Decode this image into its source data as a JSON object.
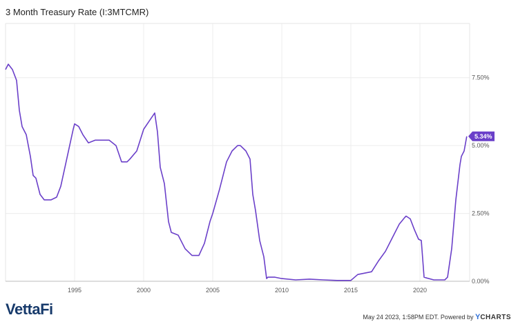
{
  "chart_data": {
    "type": "line",
    "title": "3 Month Treasury Rate (I:3MTCMR)",
    "series": [
      {
        "color": "#6a3fc9",
        "x": [
          1990.0,
          1990.2,
          1990.5,
          1990.8,
          1991.0,
          1991.2,
          1991.5,
          1991.8,
          1992.0,
          1992.2,
          1992.5,
          1992.8,
          1993.0,
          1993.3,
          1993.7,
          1994.0,
          1994.3,
          1994.6,
          1994.9,
          1995.0,
          1995.3,
          1995.6,
          1996.0,
          1996.5,
          1997.0,
          1997.5,
          1998.0,
          1998.4,
          1998.8,
          1999.0,
          1999.5,
          2000.0,
          2000.4,
          2000.8,
          2001.0,
          2001.2,
          2001.5,
          2001.8,
          2002.0,
          2002.5,
          2003.0,
          2003.5,
          2004.0,
          2004.4,
          2004.8,
          2005.0,
          2005.5,
          2006.0,
          2006.4,
          2006.8,
          2007.0,
          2007.4,
          2007.7,
          2007.9,
          2008.1,
          2008.4,
          2008.7,
          2008.9,
          2009.0,
          2009.5,
          2010.0,
          2011.0,
          2012.0,
          2013.0,
          2014.0,
          2015.0,
          2015.5,
          2016.0,
          2016.5,
          2017.0,
          2017.5,
          2018.0,
          2018.5,
          2018.9,
          2019.0,
          2019.3,
          2019.6,
          2019.9,
          2020.1,
          2020.3,
          2020.5,
          2021.0,
          2021.5,
          2021.8,
          2022.0,
          2022.3,
          2022.6,
          2022.9,
          2023.0,
          2023.2,
          2023.39
        ],
        "y": [
          7.8,
          8.0,
          7.8,
          7.4,
          6.3,
          5.7,
          5.4,
          4.6,
          3.9,
          3.8,
          3.2,
          3.0,
          3.0,
          3.0,
          3.1,
          3.5,
          4.2,
          4.9,
          5.6,
          5.8,
          5.7,
          5.4,
          5.1,
          5.2,
          5.2,
          5.2,
          5.0,
          4.4,
          4.4,
          4.5,
          4.8,
          5.6,
          5.9,
          6.2,
          5.5,
          4.2,
          3.6,
          2.2,
          1.8,
          1.7,
          1.2,
          0.95,
          0.95,
          1.4,
          2.2,
          2.5,
          3.4,
          4.4,
          4.8,
          5.0,
          5.0,
          4.8,
          4.5,
          3.2,
          2.6,
          1.5,
          0.9,
          0.1,
          0.15,
          0.15,
          0.1,
          0.05,
          0.08,
          0.05,
          0.03,
          0.03,
          0.25,
          0.3,
          0.35,
          0.75,
          1.1,
          1.6,
          2.1,
          2.35,
          2.4,
          2.3,
          1.9,
          1.55,
          1.5,
          0.15,
          0.12,
          0.05,
          0.05,
          0.05,
          0.15,
          1.2,
          3.0,
          4.3,
          4.6,
          4.8,
          5.34
        ]
      }
    ],
    "x_ticks": [
      {
        "v": 1995,
        "label": "1995"
      },
      {
        "v": 2000,
        "label": "2000"
      },
      {
        "v": 2005,
        "label": "2005"
      },
      {
        "v": 2010,
        "label": "2010"
      },
      {
        "v": 2015,
        "label": "2015"
      },
      {
        "v": 2020,
        "label": "2020"
      }
    ],
    "y_ticks": [
      {
        "v": 0,
        "label": "0.00%"
      },
      {
        "v": 2.5,
        "label": "2.50%"
      },
      {
        "v": 5,
        "label": "5.00%"
      },
      {
        "v": 7.5,
        "label": "7.50%"
      }
    ],
    "xlim": [
      1990.0,
      2023.6
    ],
    "ylim": [
      0,
      9.5
    ],
    "last_value_label": "5.34%",
    "grid": true,
    "legend": "none"
  },
  "footer": {
    "brand": "VettaFi",
    "timestamp": "May 24 2023, 1:58PM EDT. Powered by",
    "ycharts_y": "Y",
    "ycharts_rest": "CHARTS"
  }
}
